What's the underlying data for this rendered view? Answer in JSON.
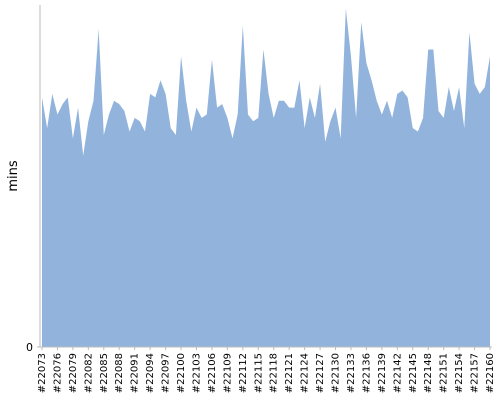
{
  "chart_data": {
    "type": "area",
    "y_label": "mins",
    "categories": [
      "#22073",
      null,
      null,
      "#22076",
      null,
      null,
      "#22079",
      null,
      null,
      "#22082",
      null,
      null,
      "#22085",
      null,
      null,
      "#22088",
      null,
      null,
      "#22091",
      null,
      null,
      "#22094",
      null,
      null,
      "#22097",
      null,
      null,
      "#22100",
      null,
      null,
      "#22103",
      null,
      null,
      "#22106",
      null,
      null,
      "#22109",
      null,
      null,
      "#22112",
      null,
      null,
      "#22115",
      null,
      null,
      "#22118",
      null,
      null,
      "#22121",
      null,
      null,
      "#22124",
      null,
      null,
      "#22127",
      null,
      null,
      "#22130",
      null,
      null,
      "#22133",
      null,
      null,
      "#22136",
      null,
      null,
      "#22139",
      null,
      null,
      "#22142",
      null,
      null,
      "#22145",
      null,
      null,
      "#22148",
      null,
      null,
      "#22151",
      null,
      null,
      "#22154",
      null,
      null,
      "#22157",
      null,
      null,
      "#22160"
    ],
    "values": [
      73,
      64,
      74,
      68,
      71,
      73,
      61,
      70,
      56,
      66,
      72,
      93,
      62,
      68,
      72,
      71,
      69,
      63,
      67,
      66,
      63,
      74,
      73,
      78,
      74,
      64,
      62,
      85,
      72,
      63,
      70,
      67,
      68,
      84,
      70,
      71,
      67,
      61,
      68,
      94,
      68,
      66,
      67,
      87,
      74,
      67,
      72,
      72,
      70,
      70,
      78,
      64,
      73,
      67,
      77,
      60,
      66,
      70,
      61,
      99,
      85,
      67,
      95,
      83,
      78,
      72,
      68,
      72,
      67,
      74,
      75,
      73,
      64,
      63,
      67,
      87,
      87,
      69,
      67,
      76,
      69,
      76,
      64,
      92,
      77,
      74,
      76,
      85
    ],
    "color": "#92b4dc",
    "ylim": [
      0,
      100
    ],
    "yticks": [
      0
    ]
  }
}
